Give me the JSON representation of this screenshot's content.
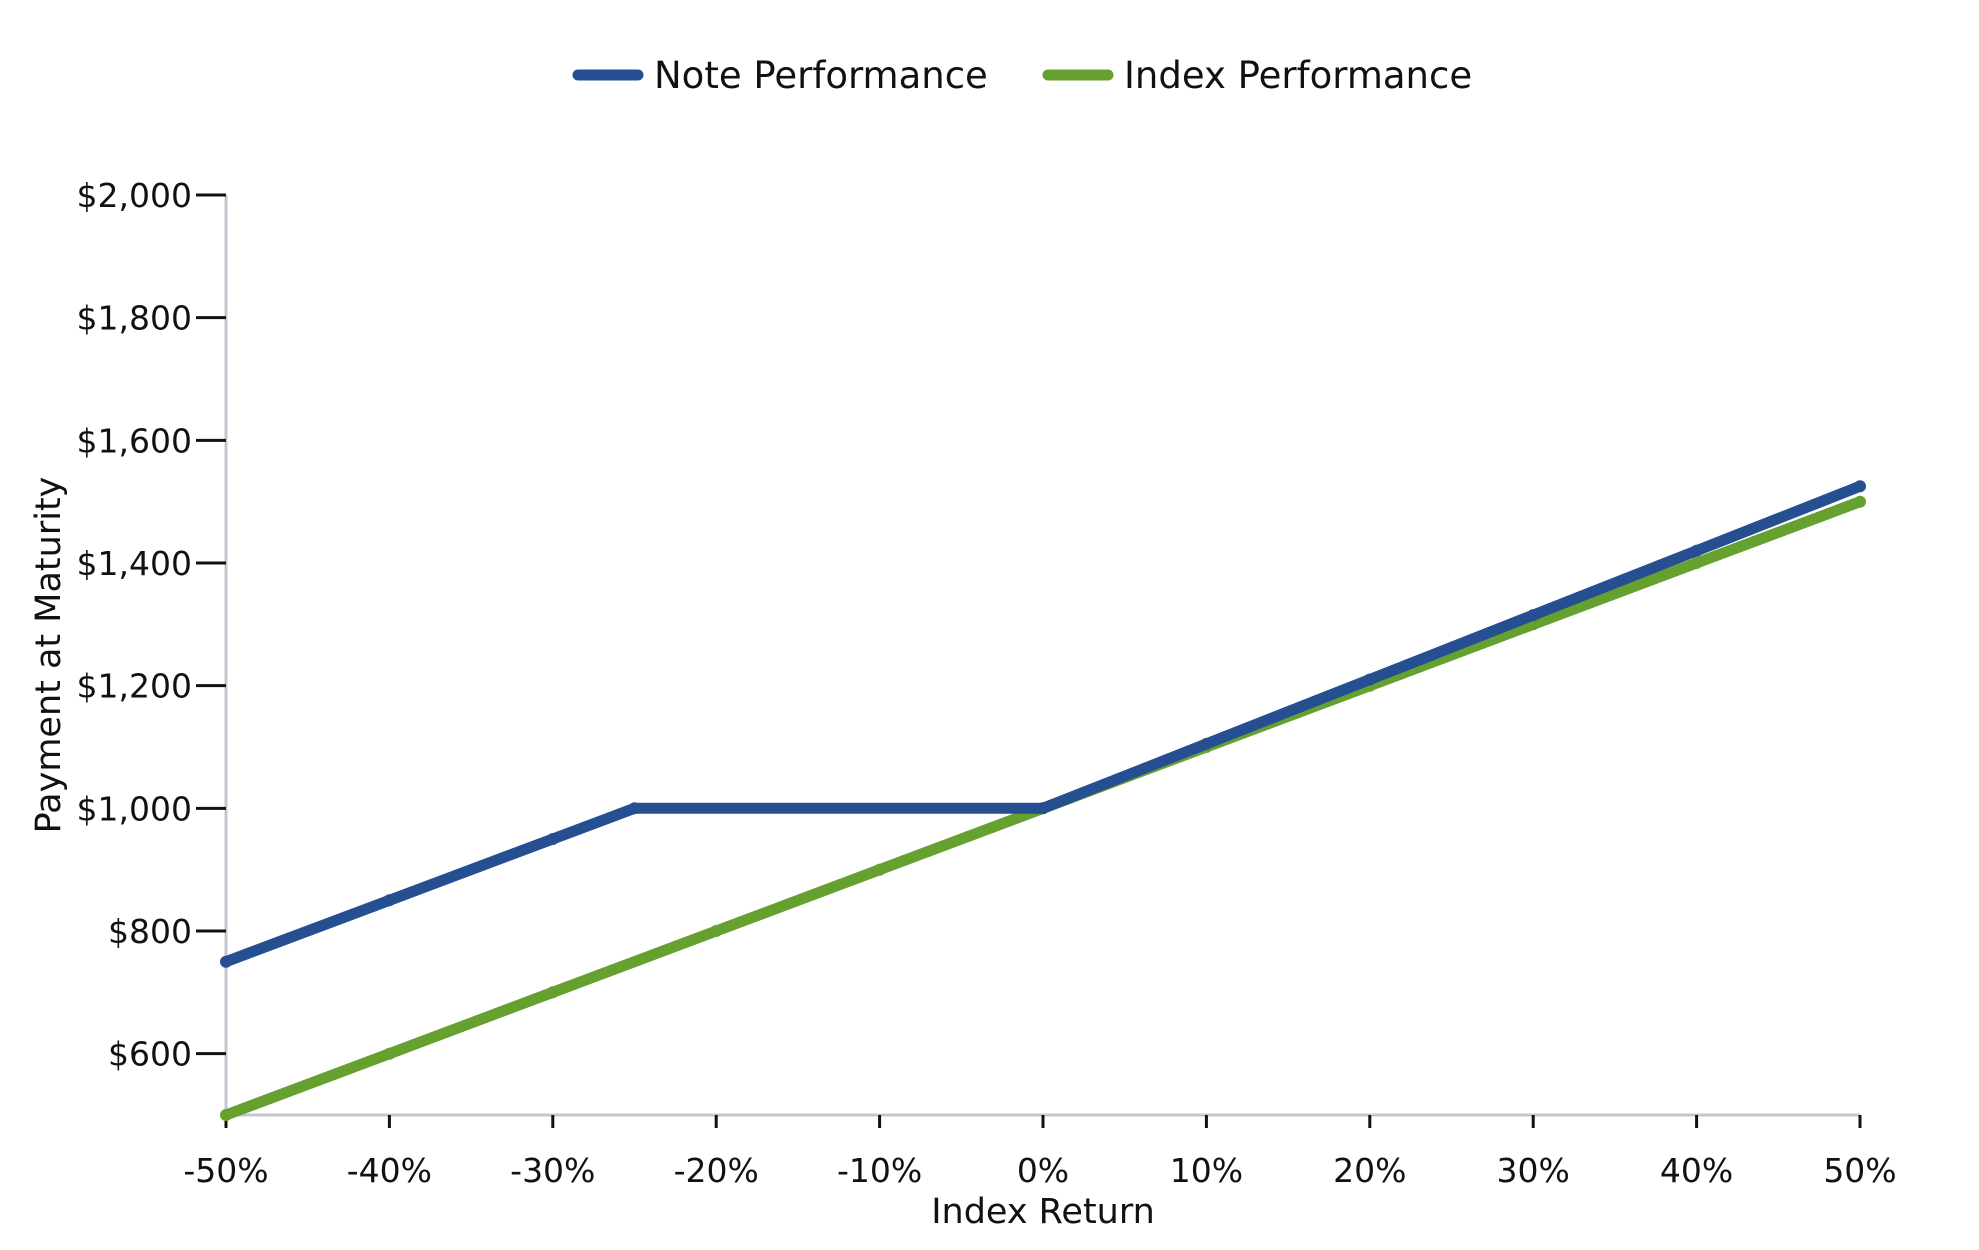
{
  "chart_data": {
    "type": "line",
    "xlabel": "Index Return",
    "ylabel": "Payment at Maturity",
    "xlim": [
      -50,
      50
    ],
    "ylim": [
      500,
      2000
    ],
    "x_ticks": [
      -50,
      -40,
      -30,
      -20,
      -10,
      0,
      10,
      20,
      30,
      40,
      50
    ],
    "x_tick_labels": [
      "-50%",
      "-40%",
      "-30%",
      "-20%",
      "-10%",
      "0%",
      "10%",
      "20%",
      "30%",
      "40%",
      "50%"
    ],
    "y_ticks": [
      600,
      800,
      1000,
      1200,
      1400,
      1600,
      1800,
      2000
    ],
    "y_tick_labels": [
      "$600",
      "$800",
      "$1,000",
      "$1,200",
      "$1,400",
      "$1,600",
      "$1,800",
      "$2,000"
    ],
    "legend_position": "top-center",
    "grid": false,
    "series": [
      {
        "name": "Note Performance",
        "color": "#264f91",
        "x": [
          -50,
          -40,
          -30,
          -25,
          0,
          10,
          20,
          30,
          40,
          50
        ],
        "y": [
          750,
          850,
          950,
          1000,
          1000,
          1105,
          1210,
          1315,
          1420,
          1525
        ]
      },
      {
        "name": "Index Performance",
        "color": "#66a02f",
        "x": [
          -50,
          -40,
          -30,
          -20,
          -10,
          0,
          10,
          20,
          30,
          40,
          50
        ],
        "y": [
          500,
          600,
          700,
          800,
          900,
          1000,
          1100,
          1200,
          1300,
          1400,
          1500
        ]
      }
    ]
  }
}
